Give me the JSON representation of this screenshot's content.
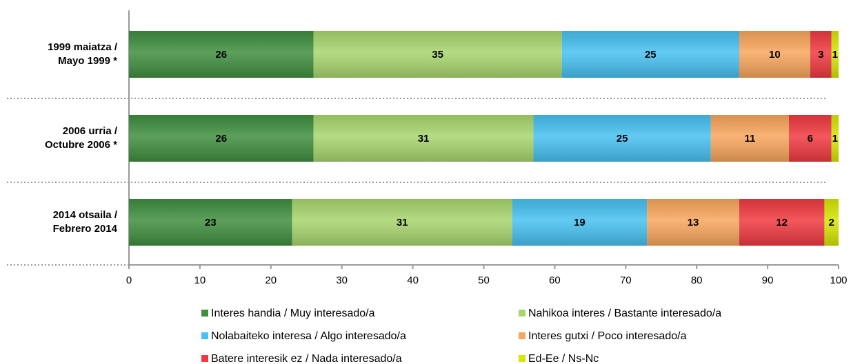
{
  "chart_data": {
    "type": "stacked_barh",
    "categories": [
      [
        "1999 maiatza /",
        "Mayo 1999 *"
      ],
      [
        "2006 urria /",
        "Octubre 2006 *"
      ],
      [
        "2014 otsaila /",
        "Febrero 2014"
      ]
    ],
    "series": [
      {
        "name": "Interes handia / Muy interesado/a",
        "color": "#3f8f3f",
        "values": [
          26,
          26,
          23
        ]
      },
      {
        "name": "Nahikoa interes / Bastante interesado/a",
        "color": "#a8d66e",
        "values": [
          35,
          31,
          31
        ]
      },
      {
        "name": "Nolabaiteko interesa / Algo interesado/a",
        "color": "#47c1f1",
        "values": [
          25,
          25,
          19
        ]
      },
      {
        "name": "Interes gutxi / Poco interesado/a",
        "color": "#f8a65c",
        "values": [
          10,
          11,
          13
        ]
      },
      {
        "name": "Batere interesik ez / Nada interesado/a",
        "color": "#f03a40",
        "values": [
          3,
          6,
          12
        ]
      },
      {
        "name": "Ed-Ee / Ns-Nc",
        "color": "#d6e600",
        "values": [
          1,
          1,
          2
        ]
      }
    ],
    "xlim": [
      0,
      100
    ],
    "xticks": [
      0,
      10,
      20,
      30,
      40,
      50,
      60,
      70,
      80,
      90,
      100
    ]
  }
}
